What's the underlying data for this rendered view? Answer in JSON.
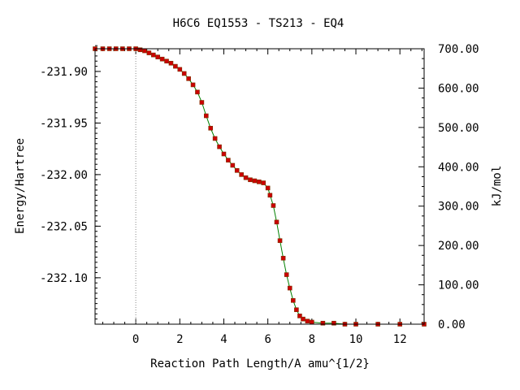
{
  "chart_data": {
    "type": "line",
    "title": "H6C6   EQ1553 - TS213 - EQ4",
    "xlabel": "Reaction Path Length/A amu^{1/2}",
    "ylabel": "Energy/Hartree",
    "y2label": "kJ/mol",
    "xlim": [
      -1.85,
      13.1
    ],
    "ylim": [
      -232.145,
      -231.878
    ],
    "y2lim": [
      0,
      700
    ],
    "x_ticks": [
      "0",
      "2",
      "4",
      "6",
      "8",
      "10",
      "12"
    ],
    "x_tick_values": [
      0,
      2,
      4,
      6,
      8,
      10,
      12
    ],
    "y_ticks": [
      "-231.90",
      "-231.95",
      "-232.00",
      "-232.05",
      "-232.10"
    ],
    "y_tick_values": [
      -231.9,
      -231.95,
      -232.0,
      -232.05,
      -232.1
    ],
    "y2_ticks": [
      "700.00",
      "600.00",
      "500.00",
      "400.00",
      "300.00",
      "200.00",
      "100.00",
      "0.00"
    ],
    "y2_tick_values": [
      700,
      600,
      500,
      400,
      300,
      200,
      100,
      0
    ],
    "ts_marker_x": 0,
    "line_color": "#008000",
    "marker_color": "#cc0000",
    "series": [
      {
        "x": [
          -1.85,
          -1.5,
          -1.2,
          -0.9,
          -0.6,
          -0.3,
          0.0,
          0.2,
          0.4,
          0.6,
          0.8,
          1.0,
          1.2,
          1.4,
          1.6,
          1.8,
          2.0,
          2.2,
          2.4,
          2.6,
          2.8,
          3.0,
          3.2,
          3.4,
          3.6,
          3.8,
          4.0,
          4.2,
          4.4,
          4.6,
          4.8,
          5.0,
          5.2,
          5.4,
          5.6,
          5.8,
          6.0,
          6.1,
          6.25,
          6.4,
          6.55,
          6.7,
          6.85,
          7.0,
          7.15,
          7.3,
          7.45,
          7.6,
          7.8,
          8.0,
          8.5,
          9.0,
          9.5,
          10.0,
          11.0,
          12.0,
          13.1
        ],
        "y": [
          -231.878,
          -231.878,
          -231.878,
          -231.878,
          -231.878,
          -231.878,
          -231.878,
          -231.879,
          -231.88,
          -231.882,
          -231.884,
          -231.886,
          -231.888,
          -231.89,
          -231.892,
          -231.895,
          -231.898,
          -231.902,
          -231.907,
          -231.913,
          -231.92,
          -231.93,
          -231.943,
          -231.955,
          -231.965,
          -231.973,
          -231.98,
          -231.986,
          -231.991,
          -231.996,
          -232.0,
          -232.003,
          -232.005,
          -232.006,
          -232.007,
          -232.008,
          -232.013,
          -232.02,
          -232.03,
          -232.046,
          -232.064,
          -232.081,
          -232.097,
          -232.11,
          -232.122,
          -232.131,
          -232.137,
          -232.14,
          -232.142,
          -232.143,
          -232.144,
          -232.144,
          -232.145,
          -232.145,
          -232.145,
          -232.145,
          -232.145
        ]
      }
    ]
  }
}
